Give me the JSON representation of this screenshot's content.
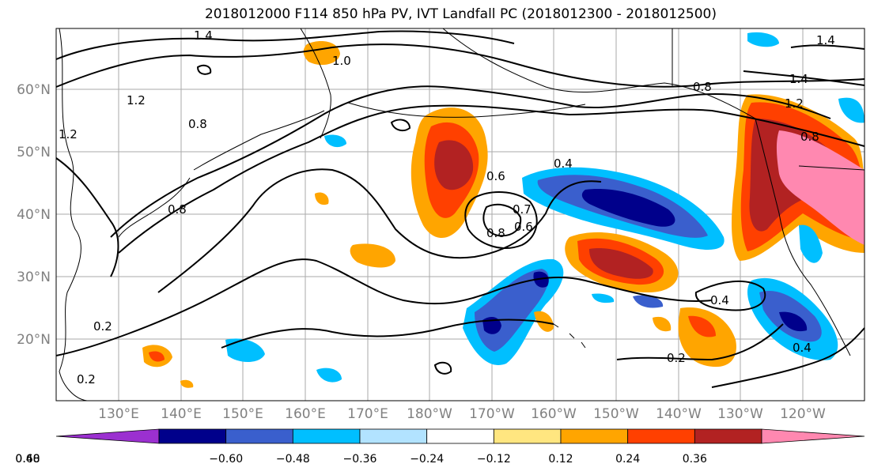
{
  "title": "2018012000 F114 850 hPa PV, IVT Landfall PC (2018012300 - 2018012500)",
  "map": {
    "lat_labels": [
      "60°N",
      "50°N",
      "40°N",
      "30°N",
      "20°N"
    ],
    "lon_labels": [
      "130°E",
      "140°E",
      "150°E",
      "160°E",
      "170°E",
      "180°W",
      "170°W",
      "160°W",
      "150°W",
      "140°W",
      "130°W",
      "120°W"
    ],
    "contour_labels": [
      "1.4",
      "1.0",
      "1.2",
      "0.8",
      "0.8",
      "1.2",
      "0.6",
      "0.4",
      "0.7",
      "0.8",
      "0.6",
      "0.2",
      "0.2",
      "0.4",
      "0.4",
      "0.2",
      "1.4",
      "1.2",
      "0.8",
      "0.8",
      "1.4"
    ]
  },
  "colorbar": {
    "ticks": [
      "−0.60",
      "−0.48",
      "−0.36",
      "−0.24",
      "−0.12",
      "0.12",
      "0.24",
      "0.36",
      "0.48",
      "0.60"
    ],
    "colors": [
      "#9b30d0",
      "#00008b",
      "#3a5fcd",
      "#00bfff",
      "#b2e3ff",
      "#ffffff",
      "#ffe680",
      "#ffa500",
      "#ff4000",
      "#b22222",
      "#ff88b0"
    ]
  }
}
